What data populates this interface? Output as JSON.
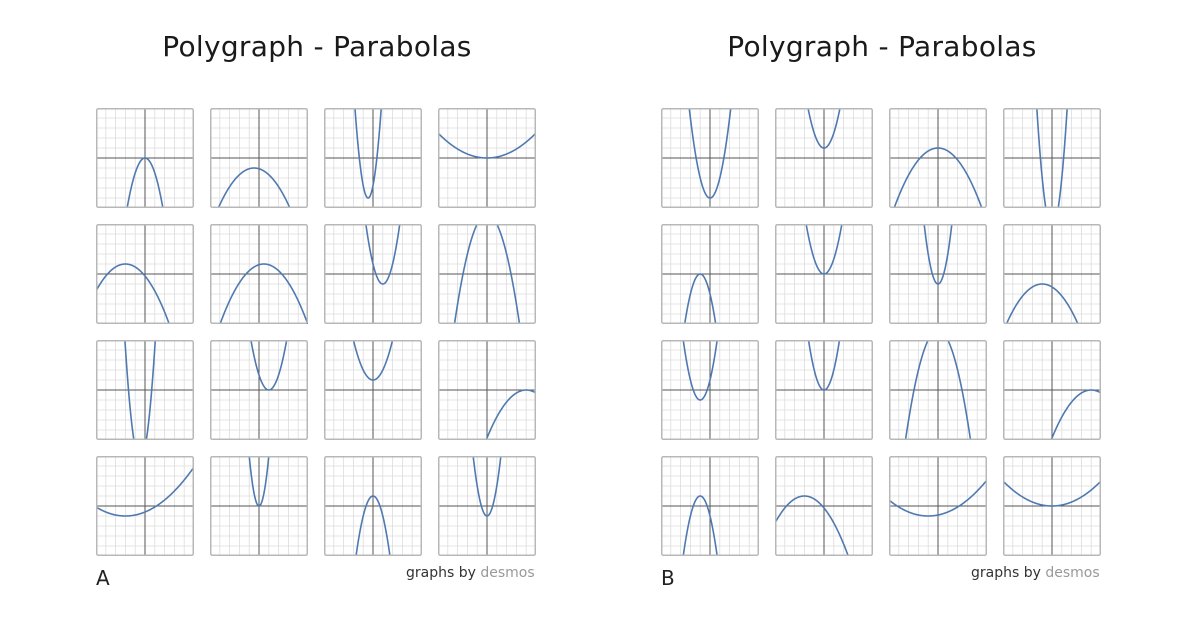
{
  "sheets": [
    {
      "id": "a",
      "title": "Polygraph - Parabolas",
      "label": "A",
      "credit_prefix": "graphs by",
      "credit_brand": "desmos"
    },
    {
      "id": "b",
      "title": "Polygraph - Parabolas",
      "label": "B",
      "credit_prefix": "graphs by",
      "credit_brand": "desmos"
    }
  ],
  "colors": {
    "curve": "#4f79b0",
    "grid": "#dcdcdc",
    "axis": "#555555",
    "frame": "#b8b8b8"
  },
  "chart_data": [
    {
      "type": "line",
      "title": "Polygraph - Parabolas",
      "panel": "A",
      "xlim": [
        -5,
        5
      ],
      "ylim": [
        -5,
        5
      ],
      "grid": true,
      "layout": "4x4 small multiples",
      "series": [
        {
          "vertex": [
            0,
            0
          ],
          "a": -1.5
        },
        {
          "vertex": [
            -0.5,
            -1
          ],
          "a": -0.3
        },
        {
          "vertex": [
            -0.5,
            -4
          ],
          "a": 5
        },
        {
          "vertex": [
            0,
            0
          ],
          "a": 0.1
        },
        {
          "vertex": [
            -2,
            1
          ],
          "a": -0.3
        },
        {
          "vertex": [
            0.5,
            1
          ],
          "a": -0.3
        },
        {
          "vertex": [
            1,
            -1
          ],
          "a": 2
        },
        {
          "vertex": [
            0,
            6
          ],
          "a": -1
        },
        {
          "vertex": [
            -0.5,
            -7
          ],
          "a": 5
        },
        {
          "vertex": [
            1,
            0
          ],
          "a": 1.5
        },
        {
          "vertex": [
            0,
            1
          ],
          "a": 1
        },
        {
          "vertex": [
            4,
            0
          ],
          "a": -0.3
        },
        {
          "vertex": [
            -2,
            -1
          ],
          "a": 0.1
        },
        {
          "vertex": [
            0,
            0
          ],
          "a": 5
        },
        {
          "vertex": [
            0,
            1
          ],
          "a": -2
        },
        {
          "vertex": [
            0,
            -1
          ],
          "a": 3
        }
      ]
    },
    {
      "type": "line",
      "title": "Polygraph - Parabolas",
      "panel": "B",
      "xlim": [
        -5,
        5
      ],
      "ylim": [
        -5,
        5
      ],
      "grid": true,
      "layout": "4x4 small multiples",
      "series": [
        {
          "vertex": [
            0,
            -4
          ],
          "a": 2
        },
        {
          "vertex": [
            0,
            1
          ],
          "a": 1.5
        },
        {
          "vertex": [
            0,
            1
          ],
          "a": -0.3
        },
        {
          "vertex": [
            0,
            -7
          ],
          "a": 5
        },
        {
          "vertex": [
            -1,
            0
          ],
          "a": -2
        },
        {
          "vertex": [
            0,
            0
          ],
          "a": 1.5
        },
        {
          "vertex": [
            0,
            -1
          ],
          "a": 3
        },
        {
          "vertex": [
            -1,
            -1
          ],
          "a": -0.3
        },
        {
          "vertex": [
            -1,
            -1
          ],
          "a": 2
        },
        {
          "vertex": [
            0,
            0
          ],
          "a": 2
        },
        {
          "vertex": [
            0,
            6
          ],
          "a": -1
        },
        {
          "vertex": [
            4,
            0
          ],
          "a": -0.3
        },
        {
          "vertex": [
            -1,
            1
          ],
          "a": -2
        },
        {
          "vertex": [
            -2,
            1
          ],
          "a": -0.3
        },
        {
          "vertex": [
            -1,
            -1
          ],
          "a": 0.1
        },
        {
          "vertex": [
            0,
            0
          ],
          "a": 0.1
        }
      ]
    }
  ]
}
